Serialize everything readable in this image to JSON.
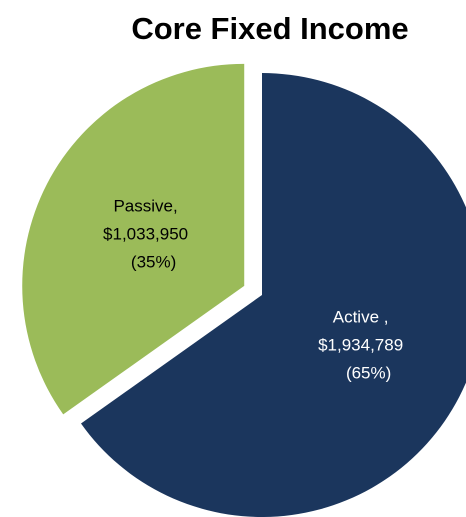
{
  "chart_data": {
    "type": "pie",
    "title": "Core Fixed Income",
    "categories": [
      "Active ,",
      "Passive,"
    ],
    "values": [
      1934789,
      1033950
    ],
    "value_labels": [
      "$1,934,789",
      "$1,033,950"
    ],
    "percents": [
      65,
      35
    ],
    "percent_labels": [
      "(65%)",
      "(35%)"
    ],
    "colors": [
      "#1b365d",
      "#9bbb59"
    ],
    "label_colors": [
      "#ffffff",
      "#000000"
    ],
    "exploded": [
      false,
      true
    ]
  }
}
